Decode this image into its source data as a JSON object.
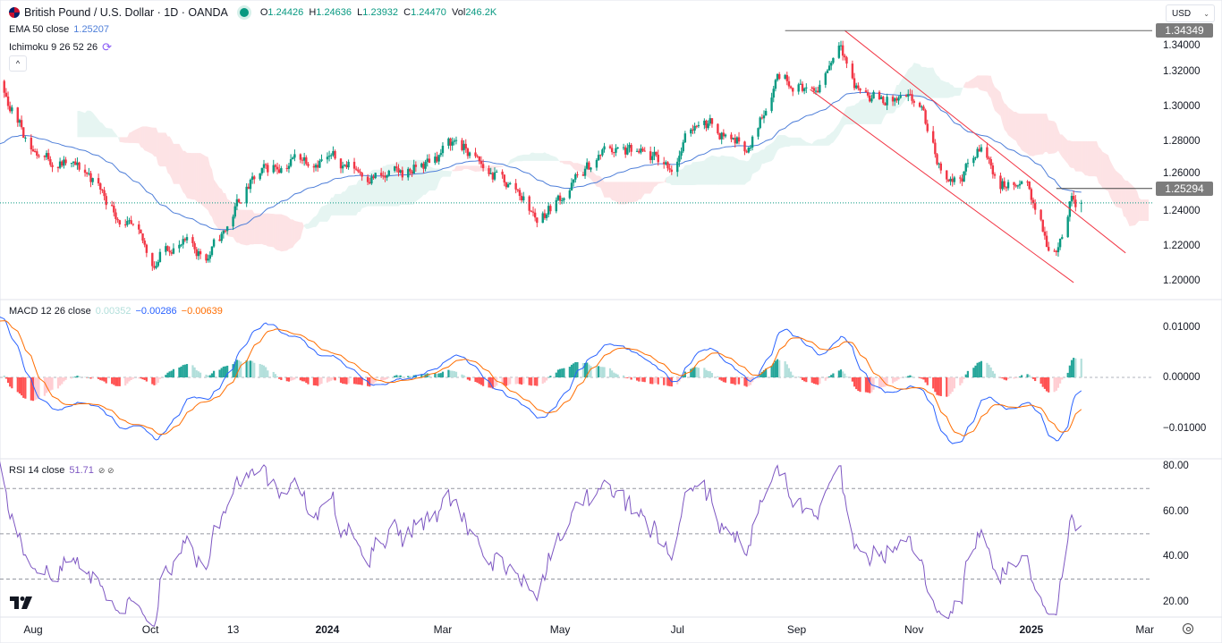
{
  "header": {
    "symbol": "British Pound / U.S. Dollar · 1D · OANDA",
    "o_label": "O",
    "o": "1.24426",
    "h_label": "H",
    "h": "1.24636",
    "l_label": "L",
    "l": "1.23932",
    "c_label": "C",
    "c": "1.24470",
    "vol_label": "Vol",
    "vol": "246.2K",
    "ema_label": "EMA 50 close",
    "ema_value": "1.25207",
    "ichimoku_label": "Ichimoku 9 26 52 26",
    "collapse_icon": "chevron-up-icon",
    "currency": "USD"
  },
  "macd_legend": {
    "label": "MACD 12 26 close",
    "hist": "0.00352",
    "macd": "−0.00286",
    "signal": "−0.00639"
  },
  "rsi_legend": {
    "label": "RSI 14 close",
    "value": "51.71",
    "icons": "⊘ ⊘"
  },
  "colors": {
    "up": "#089981",
    "down": "#f23645",
    "ema": "#4f7fd9",
    "macd": "#2962ff",
    "signal": "#ff6d00",
    "rsi": "#7e57c2",
    "cloud_up": "#089981",
    "cloud_down": "#f23645",
    "channel": "#f23645"
  },
  "chart_data": {
    "type": "candlestick",
    "title": "British Pound / U.S. Dollar · 1D · OANDA",
    "interval": "1D",
    "price_ticks": [
      "1.34000",
      "1.32000",
      "1.30000",
      "1.28000",
      "1.26000",
      "1.24000",
      "1.22000",
      "1.20000"
    ],
    "price_labels": {
      "high_line": "1.34349",
      "resistance_line": "1.25294"
    },
    "ylim": [
      1.19,
      1.345
    ],
    "last_close": 1.2447,
    "time_ticks": [
      {
        "label": "Aug",
        "date": "2023-08-01",
        "bold": false
      },
      {
        "label": "Oct",
        "date": "2023-10-01",
        "bold": false
      },
      {
        "label": "13",
        "date": "2023-11-13",
        "bold": false
      },
      {
        "label": "2024",
        "date": "2024-01-01",
        "bold": true
      },
      {
        "label": "Mar",
        "date": "2024-03-01",
        "bold": false
      },
      {
        "label": "May",
        "date": "2024-05-01",
        "bold": false
      },
      {
        "label": "Jul",
        "date": "2024-07-01",
        "bold": false
      },
      {
        "label": "Sep",
        "date": "2024-09-01",
        "bold": false
      },
      {
        "label": "Nov",
        "date": "2024-11-01",
        "bold": false
      },
      {
        "label": "2025",
        "date": "2025-01-01",
        "bold": true
      },
      {
        "label": "Mar",
        "date": "2025-03-01",
        "bold": false
      }
    ],
    "close_path": [
      [
        "2023-06-01",
        1.255
      ],
      [
        "2023-06-20",
        1.275
      ],
      [
        "2023-07-14",
        1.312
      ],
      [
        "2023-08-02",
        1.274
      ],
      [
        "2023-08-30",
        1.261
      ],
      [
        "2023-09-13",
        1.24
      ],
      [
        "2023-10-03",
        1.21
      ],
      [
        "2023-10-12",
        1.222
      ],
      [
        "2023-10-31",
        1.215
      ],
      [
        "2023-11-09",
        1.228
      ],
      [
        "2023-11-18",
        1.251
      ],
      [
        "2023-12-02",
        1.264
      ],
      [
        "2023-12-16",
        1.271
      ],
      [
        "2023-12-30",
        1.271
      ],
      [
        "2024-02-01",
        1.258
      ],
      [
        "2024-02-20",
        1.266
      ],
      [
        "2024-03-08",
        1.281
      ],
      [
        "2024-03-22",
        1.264
      ],
      [
        "2024-04-10",
        1.251
      ],
      [
        "2024-04-19",
        1.235
      ],
      [
        "2024-05-08",
        1.256
      ],
      [
        "2024-05-26",
        1.276
      ],
      [
        "2024-06-19",
        1.269
      ],
      [
        "2024-06-28",
        1.266
      ],
      [
        "2024-07-12",
        1.294
      ],
      [
        "2024-07-31",
        1.281
      ],
      [
        "2024-08-08",
        1.276
      ],
      [
        "2024-08-22",
        1.32
      ],
      [
        "2024-09-05",
        1.312
      ],
      [
        "2024-09-10",
        1.305
      ],
      [
        "2024-09-24",
        1.34
      ],
      [
        "2024-10-01",
        1.312
      ],
      [
        "2024-10-13",
        1.305
      ],
      [
        "2024-11-04",
        1.3
      ],
      [
        "2024-11-14",
        1.266
      ],
      [
        "2024-11-23",
        1.256
      ],
      [
        "2024-12-06",
        1.276
      ],
      [
        "2024-12-16",
        1.256
      ],
      [
        "2024-12-31",
        1.251
      ],
      [
        "2025-01-04",
        1.24
      ],
      [
        "2025-01-10",
        1.217
      ],
      [
        "2025-01-15",
        1.222
      ],
      [
        "2025-01-22",
        1.248
      ],
      [
        "2025-01-27",
        1.2447
      ]
    ],
    "last_candle": {
      "open": 1.24426,
      "high": 1.24636,
      "low": 1.23932,
      "close": 1.2447
    },
    "drawings": {
      "channel_upper": [
        [
          "2024-09-26",
          1.3435
        ],
        [
          "2025-02-19",
          1.216
        ]
      ],
      "channel_lower": [
        [
          "2024-09-08",
          1.3097
        ],
        [
          "2025-01-23",
          1.199
        ]
      ],
      "horizontal_high": {
        "price": 1.34349,
        "from": "2024-08-26"
      },
      "horizontal_resistance": {
        "price": 1.25294,
        "from": "2025-01-14"
      }
    },
    "indicators": {
      "ema_period": 50,
      "ichimoku": [
        9,
        26,
        52,
        26
      ],
      "macd": [
        12,
        26,
        9
      ],
      "rsi_period": 14
    },
    "macd_ticks": [
      "0.01000",
      "0.00000",
      "−0.01000"
    ],
    "macd_ylim": [
      -0.013,
      0.012
    ],
    "rsi_ticks": [
      "80.00",
      "60.00",
      "40.00",
      "20.00"
    ],
    "rsi_levels": [
      70,
      50,
      30
    ]
  }
}
